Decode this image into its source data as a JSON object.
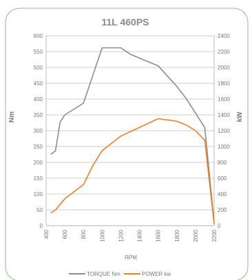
{
  "chart_data": {
    "type": "line",
    "title": "11L 460PS",
    "xlabel": "RPM",
    "ylabel_left": "Nm",
    "ylabel_right": "kW",
    "xlim": [
      400,
      2200
    ],
    "ylim_left": [
      0,
      600
    ],
    "ylim_right": [
      0,
      2400
    ],
    "x_ticks": [
      400,
      600,
      800,
      1000,
      1200,
      1400,
      1600,
      1800,
      2000,
      2200
    ],
    "y_left_ticks": [
      0,
      50,
      100,
      150,
      200,
      250,
      300,
      350,
      400,
      450,
      500,
      550,
      600
    ],
    "y_right_ticks": [
      0,
      200,
      400,
      600,
      800,
      1000,
      1200,
      1400,
      1600,
      1800,
      2000,
      2200,
      2400
    ],
    "grid": "horizontal",
    "legend_position": "bottom",
    "series": [
      {
        "name": "TORQUE Nm",
        "color": "#8c8c8c",
        "axis": "left",
        "x": [
          450,
          500,
          550,
          600,
          800,
          1000,
          1200,
          1300,
          1600,
          1800,
          1900,
          2100,
          2200
        ],
        "y": [
          225,
          237,
          327,
          350,
          387,
          562,
          562,
          542,
          505,
          440,
          402,
          310,
          10
        ]
      },
      {
        "name": "POWER kw",
        "color": "#f07f1f",
        "axis": "left",
        "x": [
          450,
          500,
          600,
          800,
          900,
          1000,
          1200,
          1600,
          1800,
          1900,
          2000,
          2100,
          2200
        ],
        "y": [
          40,
          50,
          85,
          130,
          190,
          237,
          283,
          338,
          330,
          318,
          300,
          270,
          5
        ]
      }
    ]
  }
}
